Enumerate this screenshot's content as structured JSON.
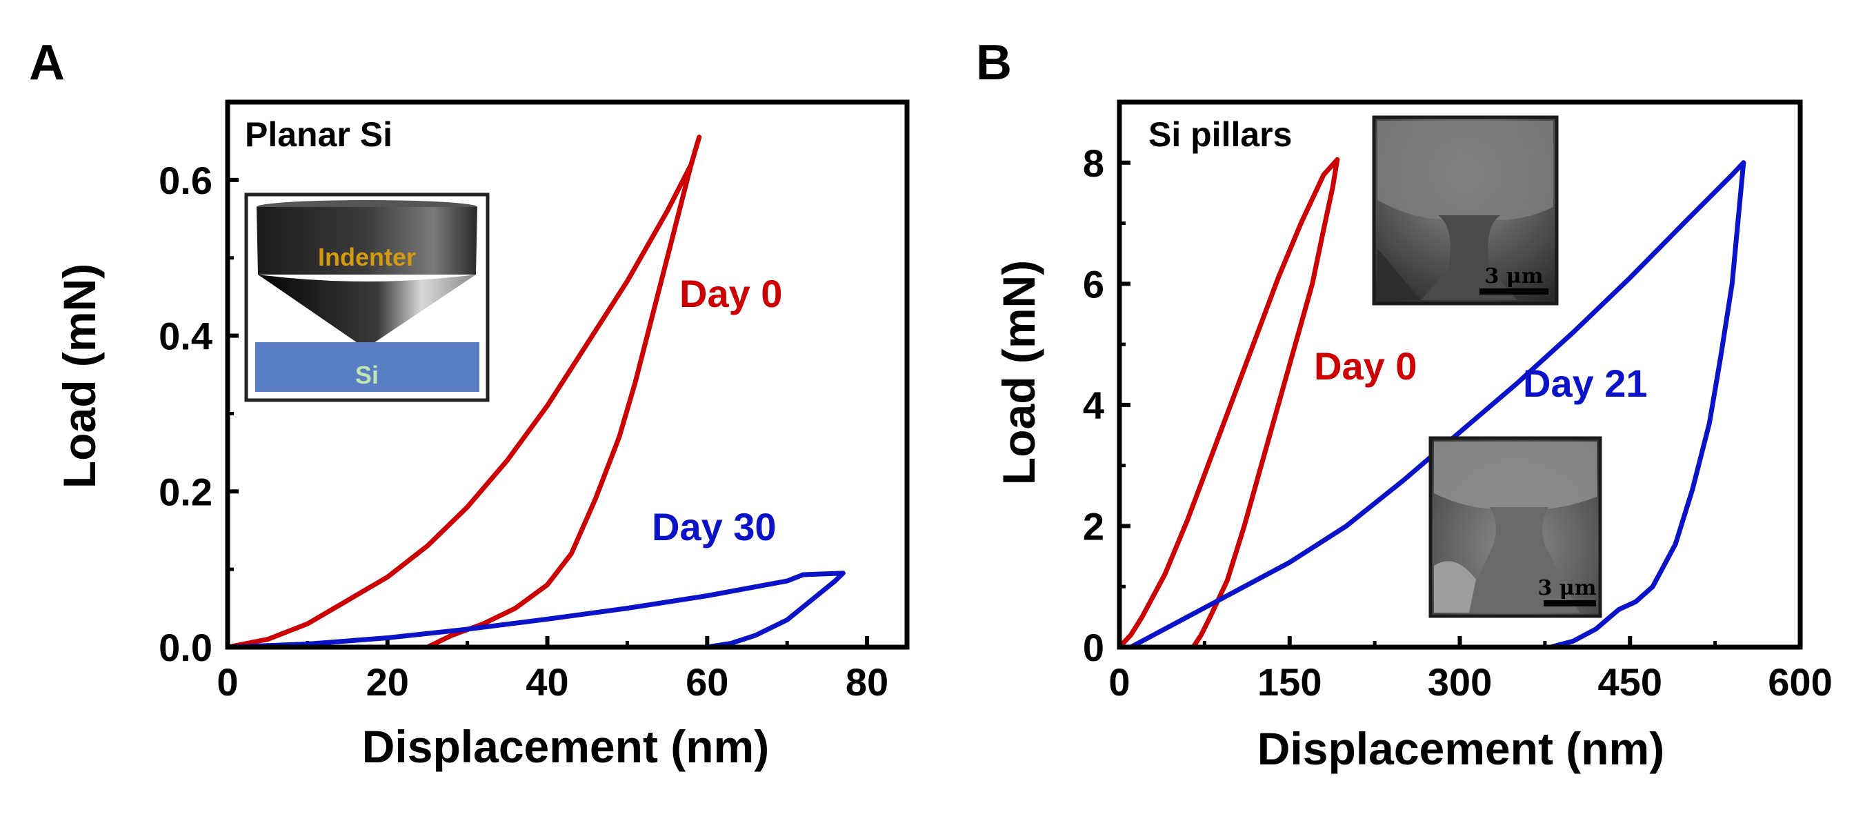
{
  "colors": {
    "day0": "#cc0000",
    "dayLater": "#0b13c8",
    "indenter_label": "#d49a12",
    "si_label": "#bfe6b0",
    "si_block": "#5a7ec4"
  },
  "panels": {
    "A": {
      "letter": "A",
      "inset_title": "Planar Si",
      "schematic": {
        "indenter_label": "Indenter",
        "substrate_label": "Si"
      }
    },
    "B": {
      "letter": "B",
      "inset_title": "Si pillars",
      "sem_top": {
        "scale_text": "3 μm"
      },
      "sem_bottom": {
        "scale_text": "3 μm"
      }
    }
  },
  "chart_data": [
    {
      "panel": "A",
      "type": "line",
      "title": "Planar Si",
      "xlabel": "Displacement (nm)",
      "ylabel": "Load (mN)",
      "xlim": [
        0,
        85
      ],
      "ylim": [
        0,
        0.7
      ],
      "xticks": [
        0,
        20,
        40,
        60,
        80
      ],
      "xtick_labels": [
        "0",
        "20",
        "40",
        "60",
        "80"
      ],
      "yticks": [
        0,
        0.2,
        0.4,
        0.6
      ],
      "ytick_labels": [
        "0.0",
        "0.2",
        "0.4",
        "0.6"
      ],
      "series": [
        {
          "name": "Day 0",
          "color": "#cc0000",
          "loading": [
            [
              0,
              0
            ],
            [
              5,
              0.01
            ],
            [
              10,
              0.03
            ],
            [
              15,
              0.06
            ],
            [
              20,
              0.09
            ],
            [
              25,
              0.13
            ],
            [
              30,
              0.18
            ],
            [
              35,
              0.24
            ],
            [
              40,
              0.31
            ],
            [
              45,
              0.39
            ],
            [
              50,
              0.47
            ],
            [
              55,
              0.56
            ],
            [
              58,
              0.62
            ],
            [
              59,
              0.655
            ]
          ],
          "unloading": [
            [
              59,
              0.655
            ],
            [
              58,
              0.62
            ],
            [
              57,
              0.58
            ],
            [
              55,
              0.5
            ],
            [
              53,
              0.42
            ],
            [
              51,
              0.34
            ],
            [
              49,
              0.27
            ],
            [
              46,
              0.19
            ],
            [
              43,
              0.12
            ],
            [
              40,
              0.08
            ],
            [
              36,
              0.05
            ],
            [
              32,
              0.03
            ],
            [
              28,
              0.015
            ],
            [
              25,
              0
            ]
          ]
        },
        {
          "name": "Day 30",
          "color": "#0b13c8",
          "loading": [
            [
              0,
              0
            ],
            [
              10,
              0.004
            ],
            [
              20,
              0.012
            ],
            [
              30,
              0.023
            ],
            [
              40,
              0.036
            ],
            [
              50,
              0.05
            ],
            [
              60,
              0.066
            ],
            [
              70,
              0.085
            ],
            [
              72,
              0.093
            ],
            [
              77,
              0.095
            ]
          ],
          "unloading": [
            [
              77,
              0.095
            ],
            [
              76,
              0.085
            ],
            [
              73,
              0.06
            ],
            [
              70,
              0.035
            ],
            [
              66,
              0.015
            ],
            [
              63,
              0.005
            ],
            [
              60,
              0
            ]
          ]
        }
      ],
      "annotations": [
        "Day 0",
        "Day 30"
      ]
    },
    {
      "panel": "B",
      "type": "line",
      "title": "Si pillars",
      "xlabel": "Displacement (nm)",
      "ylabel": "Load (mN)",
      "xlim": [
        0,
        600
      ],
      "ylim": [
        0,
        9
      ],
      "xticks": [
        0,
        150,
        300,
        450,
        600
      ],
      "xtick_labels": [
        "0",
        "150",
        "300",
        "450",
        "600"
      ],
      "yticks": [
        0,
        2,
        4,
        6,
        8
      ],
      "ytick_labels": [
        "0",
        "2",
        "4",
        "6",
        "8"
      ],
      "series": [
        {
          "name": "Day 0",
          "color": "#cc0000",
          "loading": [
            [
              0,
              0
            ],
            [
              10,
              0.2
            ],
            [
              20,
              0.5
            ],
            [
              40,
              1.2
            ],
            [
              60,
              2.1
            ],
            [
              80,
              3.1
            ],
            [
              100,
              4.1
            ],
            [
              120,
              5.1
            ],
            [
              140,
              6.1
            ],
            [
              160,
              7.0
            ],
            [
              180,
              7.8
            ],
            [
              192,
              8.05
            ]
          ],
          "unloading": [
            [
              192,
              8.05
            ],
            [
              188,
              7.6
            ],
            [
              180,
              6.9
            ],
            [
              170,
              6.0
            ],
            [
              155,
              5.0
            ],
            [
              140,
              4.0
            ],
            [
              125,
              3.0
            ],
            [
              110,
              2.0
            ],
            [
              95,
              1.1
            ],
            [
              80,
              0.5
            ],
            [
              72,
              0.2
            ],
            [
              65,
              0
            ]
          ]
        },
        {
          "name": "Day 21",
          "color": "#0b13c8",
          "loading": [
            [
              10,
              0
            ],
            [
              30,
              0.2
            ],
            [
              60,
              0.5
            ],
            [
              100,
              0.9
            ],
            [
              150,
              1.4
            ],
            [
              200,
              2.0
            ],
            [
              250,
              2.75
            ],
            [
              300,
              3.55
            ],
            [
              350,
              4.35
            ],
            [
              400,
              5.2
            ],
            [
              450,
              6.1
            ],
            [
              500,
              7.05
            ],
            [
              540,
              7.8
            ],
            [
              550,
              8.0
            ]
          ],
          "unloading": [
            [
              550,
              8.0
            ],
            [
              546,
              7.2
            ],
            [
              540,
              6.0
            ],
            [
              530,
              4.8
            ],
            [
              520,
              3.7
            ],
            [
              505,
              2.6
            ],
            [
              490,
              1.7
            ],
            [
              470,
              1.0
            ],
            [
              455,
              0.75
            ],
            [
              440,
              0.62
            ],
            [
              420,
              0.3
            ],
            [
              400,
              0.1
            ],
            [
              380,
              0
            ]
          ]
        }
      ],
      "annotations": [
        "Day 0",
        "Day 21"
      ]
    }
  ]
}
